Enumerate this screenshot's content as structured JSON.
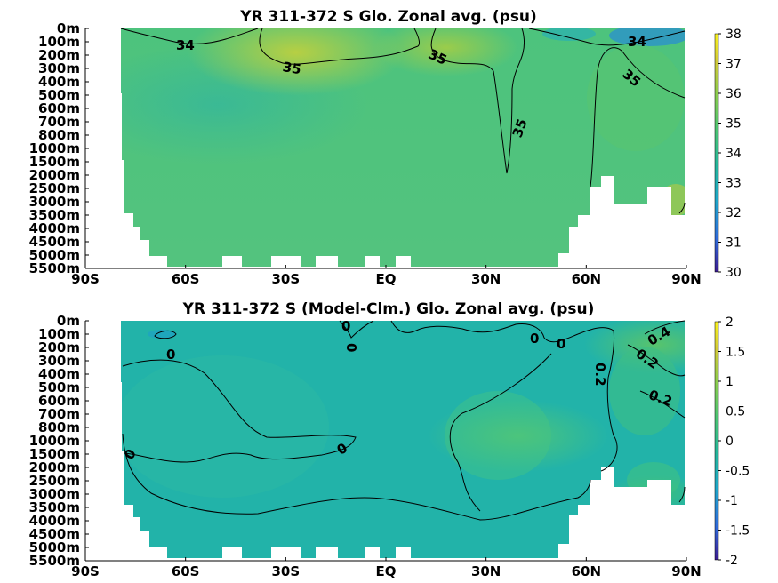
{
  "chart_data": [
    {
      "type": "heatmap",
      "title": "YR 311-372 S Glo. Zonal avg. (psu)",
      "xlabel": "",
      "ylabel": "",
      "x_ticks": [
        "90S",
        "60S",
        "30S",
        "EQ",
        "30N",
        "60N",
        "90N"
      ],
      "y_ticks": [
        "0m",
        "100m",
        "200m",
        "300m",
        "400m",
        "500m",
        "600m",
        "700m",
        "800m",
        "1000m",
        "1500m",
        "2000m",
        "2500m",
        "3000m",
        "3500m",
        "4000m",
        "4500m",
        "5000m",
        "5500m"
      ],
      "colorbar": {
        "min": 30,
        "max": 38,
        "ticks": [
          "30",
          "31",
          "32",
          "33",
          "34",
          "35",
          "36",
          "37",
          "38"
        ]
      },
      "contour_labels": [
        "34",
        "35",
        "35",
        "35",
        "34",
        "35"
      ],
      "colormap": [
        "#3b1b8f",
        "#2f6ad9",
        "#1fa6c9",
        "#24b59a",
        "#4cc472",
        "#8dcc4c",
        "#d0c93a",
        "#f9f21f"
      ]
    },
    {
      "type": "heatmap",
      "title": "YR 311-372 S (Model-Clm.) Glo. Zonal avg. (psu)",
      "xlabel": "",
      "ylabel": "",
      "x_ticks": [
        "90S",
        "60S",
        "30S",
        "EQ",
        "30N",
        "60N",
        "90N"
      ],
      "y_ticks": [
        "0m",
        "100m",
        "200m",
        "300m",
        "400m",
        "500m",
        "600m",
        "700m",
        "800m",
        "1000m",
        "1500m",
        "2000m",
        "2500m",
        "3000m",
        "3500m",
        "4000m",
        "4500m",
        "5000m",
        "5500m"
      ],
      "colorbar": {
        "min": -2,
        "max": 2,
        "ticks": [
          "2",
          "1.5",
          "1",
          "0.5",
          "0",
          "-0.5",
          "-1",
          "-1.5",
          "-2"
        ]
      },
      "contour_labels": [
        "0",
        "0",
        "0",
        "0",
        "0",
        "0",
        "0",
        "0.2",
        "0.2",
        "0.4",
        "0.2"
      ],
      "colormap": [
        "#3b1b8f",
        "#2f6ad9",
        "#1fa6c9",
        "#24b59a",
        "#4cc472",
        "#8dcc4c",
        "#d0c93a",
        "#f9f21f"
      ]
    }
  ]
}
